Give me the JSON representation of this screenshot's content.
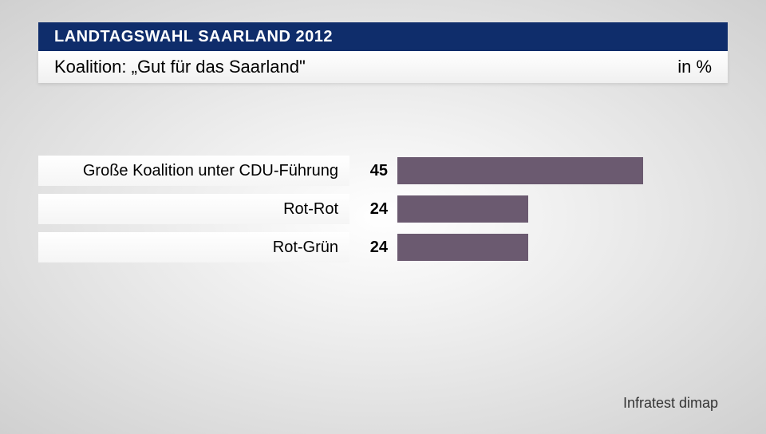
{
  "header": {
    "title": "LANDTAGSWAHL SAARLAND 2012"
  },
  "subtitle": {
    "text": "Koalition: „Gut für das Saarland\"",
    "unit": "in %"
  },
  "chart": {
    "type": "bar",
    "bar_color": "#6b5a70",
    "max_value": 60,
    "bar_area_width": 410,
    "rows": [
      {
        "label": "Große Koalition unter CDU-Führung",
        "value": 45
      },
      {
        "label": "Rot-Rot",
        "value": 24
      },
      {
        "label": "Rot-Grün",
        "value": 24
      }
    ]
  },
  "source": "Infratest dimap",
  "colors": {
    "header_bg": "#0f2d6b",
    "header_text": "#ffffff",
    "subtitle_bg": "#ffffff",
    "text": "#000000",
    "bar": "#6b5a70"
  }
}
